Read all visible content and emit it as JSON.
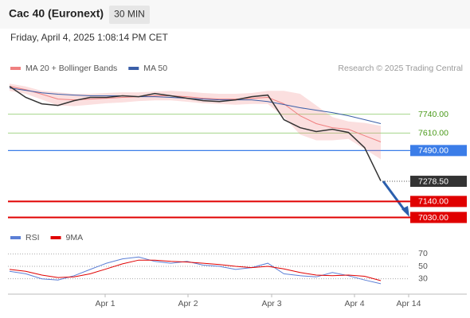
{
  "header": {
    "title": "Cac 40 (Euronext)",
    "interval": "30 MIN",
    "timestamp": "Friday, April 4, 2025 1:08:14 PM CET"
  },
  "chart_data": [
    {
      "type": "line",
      "note": "Research © 2025 Trading Central",
      "values": [
        7931,
        7855,
        7811,
        7800,
        7833,
        7855,
        7855,
        7866,
        7860,
        7882,
        7866,
        7849,
        7833,
        7827,
        7838,
        7860,
        7871,
        7702,
        7647,
        7620,
        7636,
        7614,
        7510,
        7281
      ],
      "color": "#333333",
      "series": [
        {
          "name": "MA 20 + Bollinger Bands",
          "color": "#f08080",
          "values": [
            7931,
            7909,
            7877,
            7844,
            7838,
            7844,
            7849,
            7855,
            7860,
            7866,
            7866,
            7860,
            7849,
            7844,
            7844,
            7849,
            7855,
            7811,
            7729,
            7675,
            7647,
            7636,
            7592,
            7549
          ],
          "upper": [
            7950,
            7930,
            7900,
            7890,
            7880,
            7880,
            7885,
            7890,
            7890,
            7895,
            7900,
            7895,
            7885,
            7880,
            7880,
            7885,
            7900,
            7900,
            7880,
            7800,
            7720,
            7690,
            7680,
            7660
          ],
          "lower": [
            7900,
            7880,
            7840,
            7800,
            7795,
            7805,
            7815,
            7820,
            7830,
            7835,
            7835,
            7825,
            7815,
            7810,
            7805,
            7810,
            7810,
            7720,
            7600,
            7560,
            7560,
            7570,
            7500,
            7430
          ]
        },
        {
          "name": "MA 50",
          "color": "#3a5ea8",
          "values": [
            7920,
            7904,
            7887,
            7877,
            7871,
            7866,
            7866,
            7866,
            7860,
            7860,
            7855,
            7849,
            7844,
            7838,
            7838,
            7838,
            7827,
            7806,
            7784,
            7767,
            7751,
            7729,
            7702,
            7675
          ]
        }
      ],
      "levels": [
        {
          "value": 7740,
          "label": "7740.00",
          "color": "#a5d68a",
          "style": "text"
        },
        {
          "value": 7610,
          "label": "7610.00",
          "color": "#a5d68a",
          "style": "text"
        },
        {
          "value": 7490,
          "label": "7490.00",
          "color": "#3b7de8",
          "style": "box"
        },
        {
          "value": 7140,
          "label": "7140.00",
          "color": "#e00000",
          "style": "box"
        },
        {
          "value": 7030,
          "label": "7030.00",
          "color": "#e00000",
          "style": "box"
        }
      ],
      "last": {
        "value": 7278.5,
        "label": "7278.50",
        "color": "#333333"
      },
      "ylim": [
        6940,
        8000
      ],
      "xticks": [
        "Apr 1",
        "Apr 2",
        "Apr 3",
        "Apr 4",
        "Apr 14"
      ]
    },
    {
      "type": "line",
      "series": [
        {
          "name": "RSI",
          "color": "#5b7fd6",
          "values": [
            42,
            38,
            30,
            28,
            35,
            45,
            55,
            62,
            65,
            58,
            55,
            58,
            52,
            50,
            45,
            48,
            55,
            38,
            35,
            33,
            40,
            35,
            28,
            22
          ]
        },
        {
          "name": "9MA",
          "color": "#e00000",
          "values": [
            45,
            42,
            36,
            32,
            33,
            38,
            46,
            54,
            60,
            60,
            58,
            57,
            55,
            53,
            50,
            48,
            50,
            46,
            40,
            36,
            35,
            36,
            34,
            27
          ]
        }
      ],
      "ylim": [
        4,
        82
      ],
      "yticks": [
        70,
        50,
        30
      ]
    }
  ]
}
